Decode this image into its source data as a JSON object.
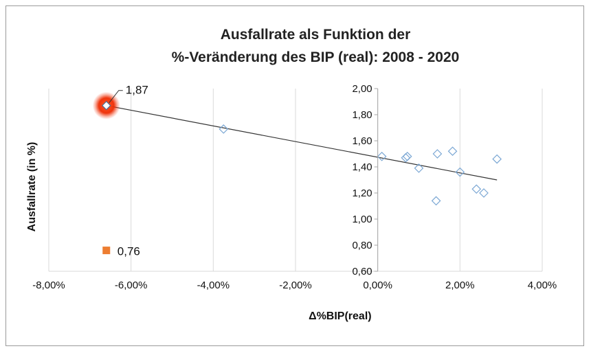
{
  "chart_data": {
    "type": "scatter",
    "title_lines": [
      "Ausfallrate als Funktion der",
      "%-Veränderung des BIP (real): 2008 - 2020"
    ],
    "xlabel": "Δ%BIP(real)",
    "ylabel": "Ausfallrate (in %)",
    "xlim": [
      -0.08,
      0.04
    ],
    "ylim": [
      0.6,
      2.0
    ],
    "x_ticks": [
      -0.08,
      -0.06,
      -0.04,
      -0.02,
      0.0,
      0.02,
      0.04
    ],
    "x_tick_labels": [
      "-8,00%",
      "-6,00%",
      "-4,00%",
      "-2,00%",
      "0,00%",
      "2,00%",
      "4,00%"
    ],
    "y_ticks": [
      0.6,
      0.8,
      1.0,
      1.2,
      1.4,
      1.6,
      1.8,
      2.0
    ],
    "y_tick_labels": [
      "0,60",
      "0,80",
      "1,00",
      "1,20",
      "1,40",
      "1,60",
      "1,80",
      "2,00"
    ],
    "grid": "vertical",
    "colors": {
      "points": "#7ba7d4",
      "trend": "#333333",
      "highlight": "#ee2a00",
      "orange": "#ed7d31",
      "grid": "#d9d9d9"
    },
    "points": [
      {
        "x": -0.066,
        "y": 1.87,
        "label": "1,87",
        "highlight": true
      },
      {
        "x": -0.0375,
        "y": 1.69
      },
      {
        "x": 0.001,
        "y": 1.48
      },
      {
        "x": 0.0068,
        "y": 1.47
      },
      {
        "x": 0.0072,
        "y": 1.48
      },
      {
        "x": 0.01,
        "y": 1.39
      },
      {
        "x": 0.0145,
        "y": 1.5
      },
      {
        "x": 0.0182,
        "y": 1.52
      },
      {
        "x": 0.02,
        "y": 1.36
      },
      {
        "x": 0.0142,
        "y": 1.14
      },
      {
        "x": 0.024,
        "y": 1.23
      },
      {
        "x": 0.0258,
        "y": 1.2
      },
      {
        "x": 0.029,
        "y": 1.46
      }
    ],
    "trendline": {
      "x": [
        -0.066,
        0.029
      ],
      "y": [
        1.87,
        1.3
      ]
    },
    "extra_point": {
      "x": -0.066,
      "y": 0.76,
      "label": "0,76"
    }
  }
}
